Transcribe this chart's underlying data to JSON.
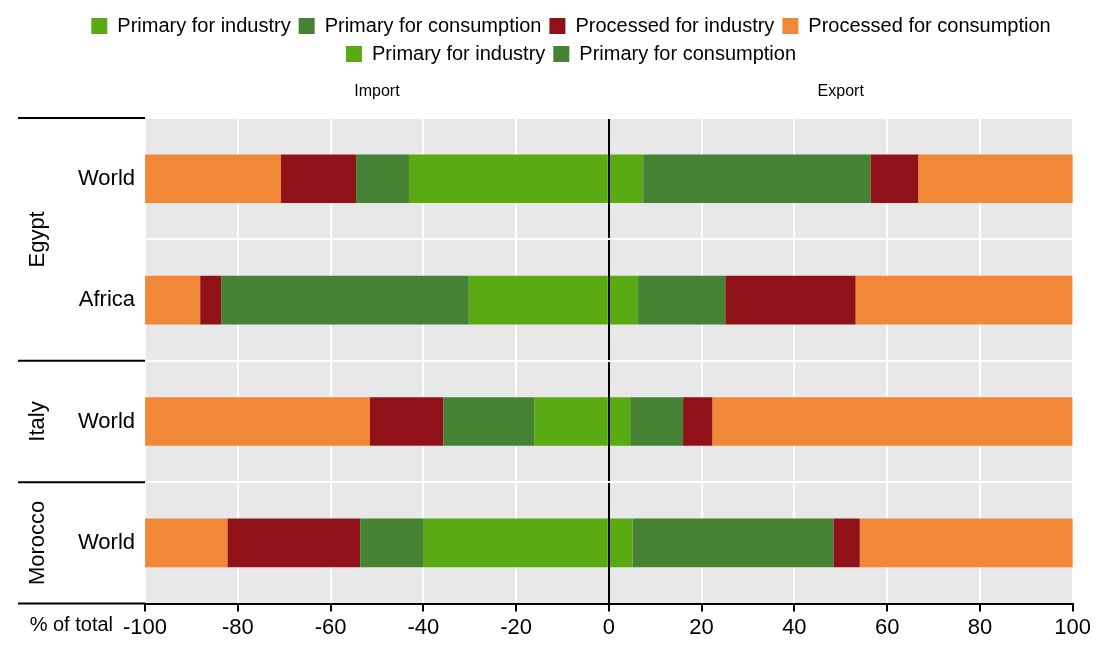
{
  "chart_data": {
    "type": "bar",
    "orientation": "horizontal",
    "stacked": true,
    "categories": [
      "World",
      "Africa",
      "World",
      "World"
    ],
    "series": [
      {
        "name": "Primary for industry",
        "color": "#5aaa14",
        "values": [
          -43.1,
          -30.2,
          -16.1,
          -39.9
        ]
      },
      {
        "name": "Primary for consumption",
        "color": "#458233",
        "values": [
          -11.4,
          -53.4,
          -19.6,
          -13.7
        ]
      },
      {
        "name": "Processed for industry",
        "color": "#911119",
        "values": [
          -16.2,
          -4.5,
          -15.8,
          -28.6
        ]
      },
      {
        "name": "Processed for consumption",
        "color": "#f08838",
        "values": [
          -29.3,
          -11.9,
          -48.5,
          -17.8
        ]
      },
      {
        "name": "Primary for industry",
        "color": "#5aaa14",
        "values": [
          7.4,
          6.3,
          4.6,
          5.1
        ]
      },
      {
        "name": "Primary for consumption",
        "color": "#458233",
        "values": [
          49.0,
          18.8,
          11.4,
          43.3
        ]
      },
      {
        "color": "#911119",
        "values": [
          10.3,
          28.1,
          6.3,
          5.7
        ]
      },
      {
        "color": "#f08838",
        "values": [
          33.4,
          46.8,
          77.7,
          46.0
        ]
      }
    ],
    "xlim": [
      -100,
      100
    ],
    "xticks": [
      -100,
      -80,
      -60,
      -40,
      -20,
      0,
      20,
      40,
      60,
      80,
      100
    ],
    "xlabel": "% of total",
    "annotations": [
      "Import",
      "Export",
      "Egypt",
      "Italy",
      "Morocco"
    ],
    "grid": true,
    "legend": "top"
  }
}
